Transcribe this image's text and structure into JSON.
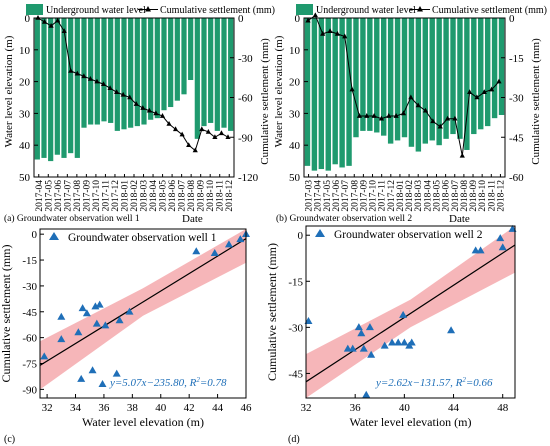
{
  "chart_data": [
    {
      "id": "a",
      "type": "bar+line",
      "panel_label": "(a) Groundwater observation well 1",
      "legend": {
        "bar": "Underground water level",
        "line": "Cumulative settlement (mm)"
      },
      "xlabel": "Date",
      "ylabel_left": "Water level elevation (m)",
      "ylabel_right": "Cumulative settlement (mm)",
      "left_ylim": [
        0,
        50
      ],
      "left_inverted": true,
      "left_ticks": [
        "0",
        "10",
        "20",
        "30",
        "40",
        "50"
      ],
      "right_ylim": [
        0,
        -120
      ],
      "right_ticks": [
        "0",
        "-30",
        "-60",
        "-90",
        "-120"
      ],
      "x_axis_grid": false,
      "categories": [
        "2017-04",
        "2017-05",
        "2017-06",
        "2017-07",
        "2017-08",
        "2017-09",
        "2017-10",
        "2017-11",
        "2017-12",
        "2018-01",
        "2018-02",
        "2018-03",
        "2018-04",
        "2018-05",
        "2018-06",
        "2018-07",
        "2018-08",
        "2018-09",
        "2018-10",
        "2018-11",
        "2018-12"
      ],
      "tick_labels": [
        "2017-04",
        "2017-05",
        "2017-06",
        "2017-07",
        "2017-08",
        "2017-09",
        "2017-10",
        "2017-11",
        "2017-12",
        "2018-01",
        "2018-02",
        "2018-03",
        "2018-04",
        "2018-05",
        "2018-06",
        "2018-07",
        "2018-08",
        "2018-09",
        "2018-10",
        "2018-11",
        "2018-12"
      ],
      "bars": [
        {
          "x": "2017-04a",
          "water_level_depth": 44.5
        },
        {
          "x": "2017-04b",
          "water_level_depth": 44.0
        },
        {
          "x": "2017-05a",
          "water_level_depth": 45.0
        },
        {
          "x": "2017-05b",
          "water_level_depth": 43.0
        },
        {
          "x": "2017-06a",
          "water_level_depth": 44.0
        },
        {
          "x": "2017-06b",
          "water_level_depth": 42.5
        },
        {
          "x": "2017-07a",
          "water_level_depth": 44.0
        },
        {
          "x": "2017-07b",
          "water_level_depth": 34.5
        },
        {
          "x": "2017-08a",
          "water_level_depth": 33.5
        },
        {
          "x": "2017-08b",
          "water_level_depth": 33.5
        },
        {
          "x": "2017-09a",
          "water_level_depth": 32.5
        },
        {
          "x": "2017-09b",
          "water_level_depth": 33.0
        },
        {
          "x": "2017-10a",
          "water_level_depth": 35.5
        },
        {
          "x": "2017-10b",
          "water_level_depth": 35.0
        },
        {
          "x": "2017-11a",
          "water_level_depth": 34.5
        },
        {
          "x": "2017-11b",
          "water_level_depth": 34.0
        },
        {
          "x": "2017-12a",
          "water_level_depth": 33.5
        },
        {
          "x": "2017-12b",
          "water_level_depth": 32.0
        },
        {
          "x": "2018-01a",
          "water_level_depth": 31.5
        },
        {
          "x": "2018-01b",
          "water_level_depth": 29.0
        },
        {
          "x": "2018-02a",
          "water_level_depth": 28.0
        },
        {
          "x": "2018-02b",
          "water_level_depth": 26.0
        },
        {
          "x": "2018-03a",
          "water_level_depth": 24.0
        },
        {
          "x": "2018-03b",
          "water_level_depth": 19.5
        },
        {
          "x": "2018-04a",
          "water_level_depth": 38.0
        },
        {
          "x": "2018-04b",
          "water_level_depth": 34.0
        },
        {
          "x": "2018-05a",
          "water_level_depth": 33.0
        },
        {
          "x": "2018-05b",
          "water_level_depth": 35.5
        },
        {
          "x": "2018-06a",
          "water_level_depth": 34.5
        },
        {
          "x": "2018-06b",
          "water_level_depth": 35.5
        }
      ],
      "settlement_line": [
        0,
        -3,
        -6,
        -2,
        -10,
        -40,
        -42,
        -44,
        -46,
        -48,
        -50,
        -53,
        -56,
        -58,
        -60,
        -65,
        -68,
        -70,
        -72,
        -74,
        -80,
        -84,
        -88,
        -96,
        -100,
        -84,
        -86,
        -90,
        -87,
        -90
      ]
    },
    {
      "id": "b",
      "type": "bar+line",
      "panel_label": "(b) Groundwater observation well 2",
      "legend": {
        "bar": "Underground water level",
        "line": "Cumulative settlement (mm)"
      },
      "xlabel": "Date",
      "ylabel_left": "Water level elevation (m)",
      "ylabel_right": "Cumulative settlement (mm)",
      "left_ylim": [
        0,
        50
      ],
      "left_inverted": true,
      "left_ticks": [
        "0",
        "10",
        "20",
        "30",
        "40",
        "50"
      ],
      "right_ylim": [
        0,
        -60
      ],
      "right_ticks": [
        "0",
        "-15",
        "-30",
        "-45",
        "-60"
      ],
      "tick_labels": [
        "2017-03",
        "2017-04",
        "2017-05",
        "2017-06",
        "2017-07",
        "2017-08",
        "2017-09",
        "2017-10",
        "2017-11",
        "2017-12",
        "2018-01",
        "2018-02",
        "2018-03",
        "2018-04",
        "2018-05",
        "2018-06",
        "2018-07",
        "2018-08",
        "2018-09",
        "2018-10",
        "2018-11",
        "2018-12"
      ],
      "bars": [
        {
          "x": "2017-03a",
          "water_level_depth": 46.5
        },
        {
          "x": "2017-03b",
          "water_level_depth": 48.0
        },
        {
          "x": "2017-04a",
          "water_level_depth": 47.5
        },
        {
          "x": "2017-04b",
          "water_level_depth": 48.0
        },
        {
          "x": "2017-05a",
          "water_level_depth": 46.0
        },
        {
          "x": "2017-05b",
          "water_level_depth": 47.0
        },
        {
          "x": "2017-06a",
          "water_level_depth": 46.5
        },
        {
          "x": "2017-06b",
          "water_level_depth": 37.5
        },
        {
          "x": "2017-07a",
          "water_level_depth": 35.5
        },
        {
          "x": "2017-07b",
          "water_level_depth": 35.5
        },
        {
          "x": "2017-08a",
          "water_level_depth": 36.0
        },
        {
          "x": "2017-08b",
          "water_level_depth": 37.0
        },
        {
          "x": "2017-09a",
          "water_level_depth": 39.5
        },
        {
          "x": "2017-09b",
          "water_level_depth": 38.5
        },
        {
          "x": "2017-10a",
          "water_level_depth": 37.5
        },
        {
          "x": "2017-10b",
          "water_level_depth": 40.5
        },
        {
          "x": "2017-11a",
          "water_level_depth": 42.0
        },
        {
          "x": "2017-11b",
          "water_level_depth": 39.5
        },
        {
          "x": "2017-12a",
          "water_level_depth": 38.5
        },
        {
          "x": "2017-12b",
          "water_level_depth": 40.0
        },
        {
          "x": "2018-01a",
          "water_level_depth": 38.0
        },
        {
          "x": "2018-01b",
          "water_level_depth": 36.5
        },
        {
          "x": "2018-02a",
          "water_level_depth": 38.0
        },
        {
          "x": "2018-02b",
          "water_level_depth": 41.5
        },
        {
          "x": "2018-03a",
          "water_level_depth": 36.5
        },
        {
          "x": "2018-03b",
          "water_level_depth": 35.0
        },
        {
          "x": "2018-04a",
          "water_level_depth": 34.0
        },
        {
          "x": "2018-04b",
          "water_level_depth": 31.5
        },
        {
          "x": "2018-05a",
          "water_level_depth": 30.5
        }
      ],
      "settlement_line": [
        -1,
        1,
        -6,
        -5,
        -6,
        -7,
        -27,
        -37,
        -37,
        -37,
        -38,
        -37,
        -37,
        -36,
        -30,
        -33,
        -35,
        -39,
        -41,
        -38,
        -38,
        -52,
        -28,
        -30,
        -28,
        -27,
        -24
      ]
    },
    {
      "id": "c",
      "type": "scatter",
      "panel_label": "(c)",
      "title": "Groundwater observation well 1",
      "xlabel": "Water level elevation (m)",
      "ylabel": "Cumulative settlement (mm)",
      "xlim": [
        31.5,
        46
      ],
      "ylim": [
        -95,
        3
      ],
      "x_ticks": [
        "32",
        "34",
        "36",
        "38",
        "40",
        "42",
        "44",
        "46"
      ],
      "y_ticks": [
        "0",
        "-15",
        "-30",
        "-45",
        "-60",
        "-75",
        "-90"
      ],
      "equation": "y=5.07x−235.80, ",
      "r2_label": "R",
      "r2_value": "=0.78",
      "fit": {
        "slope": 5.07,
        "intercept": -235.8
      },
      "band_halfwidth": [
        14,
        8,
        14
      ],
      "points": [
        [
          31.8,
          -71
        ],
        [
          33.0,
          -48
        ],
        [
          33.0,
          -61
        ],
        [
          34.2,
          -57
        ],
        [
          34.4,
          -84
        ],
        [
          34.5,
          -43
        ],
        [
          34.8,
          -46
        ],
        [
          35.2,
          -79
        ],
        [
          35.4,
          -42
        ],
        [
          35.5,
          -52
        ],
        [
          35.7,
          -41
        ],
        [
          35.9,
          -87
        ],
        [
          36.1,
          -53
        ],
        [
          36.9,
          -81
        ],
        [
          37.1,
          -50
        ],
        [
          37.8,
          -45
        ],
        [
          42.5,
          -10
        ],
        [
          43.8,
          -11
        ],
        [
          44.8,
          -6
        ],
        [
          45.6,
          -3
        ],
        [
          46.0,
          0
        ]
      ]
    },
    {
      "id": "d",
      "type": "scatter",
      "panel_label": "(d)",
      "title": "Groundwater observation well 2",
      "xlabel": "Water level elevation (m)",
      "ylabel": "Cumulative settlement (mm)",
      "xlim": [
        32,
        49
      ],
      "ylim": [
        -53,
        3
      ],
      "x_ticks": [
        "32",
        "36",
        "40",
        "44",
        "48"
      ],
      "y_ticks": [
        "0",
        "-15",
        "-30",
        "-45"
      ],
      "equation": "y=2.62x−131.57, ",
      "r2_label": "R",
      "r2_value": "=0.66",
      "fit": {
        "slope": 2.62,
        "intercept": -131.57
      },
      "band_halfwidth": [
        9,
        4.5,
        9
      ],
      "points": [
        [
          32.2,
          -28
        ],
        [
          35.4,
          -37
        ],
        [
          35.8,
          -37
        ],
        [
          36.3,
          -30
        ],
        [
          36.5,
          -32
        ],
        [
          36.7,
          -37
        ],
        [
          36.9,
          -52
        ],
        [
          37.2,
          -30
        ],
        [
          37.3,
          -39
        ],
        [
          38.4,
          -36
        ],
        [
          39.0,
          -35
        ],
        [
          39.5,
          -35
        ],
        [
          39.9,
          -26
        ],
        [
          40.0,
          -35
        ],
        [
          40.4,
          -36
        ],
        [
          40.6,
          -35
        ],
        [
          43.8,
          -31
        ],
        [
          45.8,
          -5
        ],
        [
          46.2,
          -5
        ],
        [
          47.8,
          -1
        ],
        [
          48.0,
          -4
        ],
        [
          48.8,
          2
        ]
      ]
    }
  ]
}
